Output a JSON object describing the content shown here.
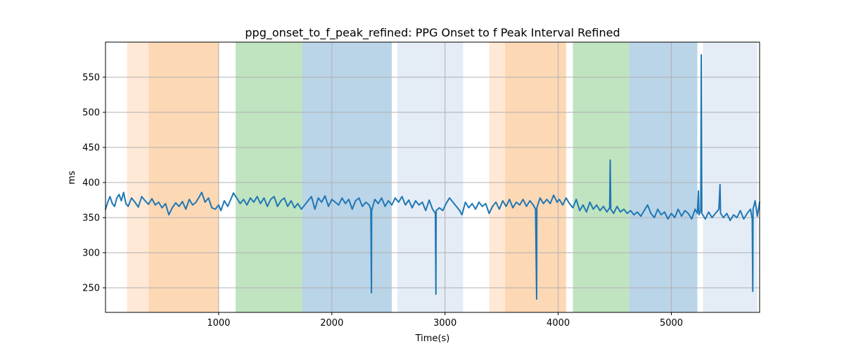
{
  "chart_data": {
    "type": "line",
    "title": "ppg_onset_to_f_peak_refined: PPG Onset to f Peak Interval Refined",
    "xlabel": "Time(s)",
    "ylabel": "ms",
    "xlim": [
      0,
      5780
    ],
    "ylim": [
      215,
      600
    ],
    "x_ticks": [
      1000,
      2000,
      3000,
      4000,
      5000
    ],
    "y_ticks": [
      250,
      300,
      350,
      400,
      450,
      500,
      550
    ],
    "grid": true,
    "line_color": "#1f77b4",
    "bands": [
      {
        "start": 190,
        "end": 380,
        "color": "#ffe9d6"
      },
      {
        "start": 380,
        "end": 1000,
        "color": "#fdd8b5"
      },
      {
        "start": 1150,
        "end": 1740,
        "color": "#c0e3c0"
      },
      {
        "start": 1740,
        "end": 2530,
        "color": "#bad4e8"
      },
      {
        "start": 2580,
        "end": 3160,
        "color": "#e4ecf6"
      },
      {
        "start": 3390,
        "end": 3530,
        "color": "#ffe9d6"
      },
      {
        "start": 3530,
        "end": 4070,
        "color": "#fdd8b5"
      },
      {
        "start": 4130,
        "end": 4630,
        "color": "#c0e3c0"
      },
      {
        "start": 4630,
        "end": 5230,
        "color": "#bad4e8"
      },
      {
        "start": 5280,
        "end": 5760,
        "color": "#e4ecf6"
      }
    ],
    "series": [
      {
        "values": [
          [
            0,
            362
          ],
          [
            20,
            372
          ],
          [
            40,
            380
          ],
          [
            60,
            370
          ],
          [
            80,
            366
          ],
          [
            100,
            378
          ],
          [
            120,
            383
          ],
          [
            140,
            374
          ],
          [
            160,
            386
          ],
          [
            180,
            370
          ],
          [
            200,
            366
          ],
          [
            230,
            378
          ],
          [
            260,
            372
          ],
          [
            290,
            365
          ],
          [
            320,
            380
          ],
          [
            350,
            374
          ],
          [
            380,
            369
          ],
          [
            410,
            377
          ],
          [
            440,
            368
          ],
          [
            470,
            372
          ],
          [
            500,
            364
          ],
          [
            530,
            370
          ],
          [
            560,
            354
          ],
          [
            590,
            364
          ],
          [
            620,
            371
          ],
          [
            650,
            366
          ],
          [
            680,
            373
          ],
          [
            710,
            362
          ],
          [
            740,
            376
          ],
          [
            770,
            368
          ],
          [
            800,
            372
          ],
          [
            830,
            380
          ],
          [
            850,
            386
          ],
          [
            880,
            372
          ],
          [
            910,
            378
          ],
          [
            940,
            364
          ],
          [
            970,
            362
          ],
          [
            1000,
            368
          ],
          [
            1020,
            360
          ],
          [
            1050,
            374
          ],
          [
            1080,
            366
          ],
          [
            1110,
            377
          ],
          [
            1130,
            385
          ],
          [
            1160,
            378
          ],
          [
            1190,
            370
          ],
          [
            1220,
            376
          ],
          [
            1250,
            368
          ],
          [
            1280,
            378
          ],
          [
            1310,
            372
          ],
          [
            1340,
            380
          ],
          [
            1370,
            370
          ],
          [
            1400,
            378
          ],
          [
            1430,
            366
          ],
          [
            1460,
            376
          ],
          [
            1490,
            380
          ],
          [
            1520,
            366
          ],
          [
            1550,
            374
          ],
          [
            1580,
            378
          ],
          [
            1610,
            366
          ],
          [
            1640,
            374
          ],
          [
            1670,
            364
          ],
          [
            1700,
            370
          ],
          [
            1730,
            362
          ],
          [
            1760,
            368
          ],
          [
            1790,
            374
          ],
          [
            1820,
            380
          ],
          [
            1850,
            362
          ],
          [
            1880,
            378
          ],
          [
            1910,
            372
          ],
          [
            1940,
            381
          ],
          [
            1970,
            366
          ],
          [
            2000,
            376
          ],
          [
            2030,
            372
          ],
          [
            2060,
            368
          ],
          [
            2090,
            378
          ],
          [
            2120,
            370
          ],
          [
            2150,
            376
          ],
          [
            2180,
            362
          ],
          [
            2210,
            374
          ],
          [
            2240,
            378
          ],
          [
            2270,
            366
          ],
          [
            2300,
            372
          ],
          [
            2330,
            368
          ],
          [
            2345,
            362
          ],
          [
            2350,
            243
          ],
          [
            2352,
            360
          ],
          [
            2380,
            376
          ],
          [
            2410,
            370
          ],
          [
            2440,
            378
          ],
          [
            2470,
            366
          ],
          [
            2500,
            374
          ],
          [
            2530,
            368
          ],
          [
            2560,
            378
          ],
          [
            2590,
            372
          ],
          [
            2620,
            380
          ],
          [
            2650,
            368
          ],
          [
            2680,
            375
          ],
          [
            2710,
            364
          ],
          [
            2740,
            374
          ],
          [
            2770,
            368
          ],
          [
            2800,
            372
          ],
          [
            2830,
            360
          ],
          [
            2860,
            375
          ],
          [
            2890,
            362
          ],
          [
            2915,
            356
          ],
          [
            2920,
            241
          ],
          [
            2922,
            360
          ],
          [
            2950,
            364
          ],
          [
            2980,
            360
          ],
          [
            3010,
            370
          ],
          [
            3040,
            378
          ],
          [
            3070,
            372
          ],
          [
            3100,
            366
          ],
          [
            3130,
            360
          ],
          [
            3150,
            354
          ],
          [
            3180,
            372
          ],
          [
            3210,
            364
          ],
          [
            3240,
            370
          ],
          [
            3270,
            362
          ],
          [
            3300,
            372
          ],
          [
            3330,
            366
          ],
          [
            3360,
            370
          ],
          [
            3390,
            356
          ],
          [
            3420,
            366
          ],
          [
            3450,
            372
          ],
          [
            3480,
            362
          ],
          [
            3510,
            374
          ],
          [
            3540,
            366
          ],
          [
            3570,
            376
          ],
          [
            3600,
            364
          ],
          [
            3630,
            372
          ],
          [
            3660,
            368
          ],
          [
            3690,
            376
          ],
          [
            3720,
            366
          ],
          [
            3750,
            374
          ],
          [
            3780,
            368
          ],
          [
            3800,
            362
          ],
          [
            3810,
            234
          ],
          [
            3812,
            364
          ],
          [
            3840,
            378
          ],
          [
            3870,
            370
          ],
          [
            3900,
            376
          ],
          [
            3930,
            370
          ],
          [
            3960,
            382
          ],
          [
            3990,
            372
          ],
          [
            4010,
            376
          ],
          [
            4040,
            368
          ],
          [
            4070,
            378
          ],
          [
            4100,
            370
          ],
          [
            4130,
            364
          ],
          [
            4160,
            376
          ],
          [
            4190,
            360
          ],
          [
            4220,
            368
          ],
          [
            4250,
            358
          ],
          [
            4280,
            372
          ],
          [
            4310,
            362
          ],
          [
            4340,
            368
          ],
          [
            4370,
            360
          ],
          [
            4400,
            366
          ],
          [
            4430,
            358
          ],
          [
            4455,
            364
          ],
          [
            4460,
            432
          ],
          [
            4465,
            362
          ],
          [
            4490,
            356
          ],
          [
            4520,
            366
          ],
          [
            4550,
            358
          ],
          [
            4580,
            362
          ],
          [
            4610,
            356
          ],
          [
            4640,
            360
          ],
          [
            4670,
            354
          ],
          [
            4700,
            358
          ],
          [
            4730,
            352
          ],
          [
            4760,
            360
          ],
          [
            4790,
            368
          ],
          [
            4820,
            356
          ],
          [
            4850,
            350
          ],
          [
            4880,
            362
          ],
          [
            4910,
            354
          ],
          [
            4940,
            358
          ],
          [
            4970,
            348
          ],
          [
            5000,
            356
          ],
          [
            5030,
            350
          ],
          [
            5060,
            362
          ],
          [
            5090,
            352
          ],
          [
            5120,
            360
          ],
          [
            5150,
            356
          ],
          [
            5180,
            348
          ],
          [
            5210,
            362
          ],
          [
            5230,
            356
          ],
          [
            5240,
            388
          ],
          [
            5245,
            354
          ],
          [
            5260,
            360
          ],
          [
            5265,
            582
          ],
          [
            5270,
            356
          ],
          [
            5300,
            348
          ],
          [
            5330,
            358
          ],
          [
            5360,
            350
          ],
          [
            5390,
            356
          ],
          [
            5420,
            362
          ],
          [
            5430,
            397
          ],
          [
            5435,
            356
          ],
          [
            5460,
            350
          ],
          [
            5490,
            356
          ],
          [
            5520,
            346
          ],
          [
            5550,
            354
          ],
          [
            5580,
            350
          ],
          [
            5610,
            360
          ],
          [
            5640,
            348
          ],
          [
            5670,
            356
          ],
          [
            5700,
            362
          ],
          [
            5715,
            348
          ],
          [
            5720,
            245
          ],
          [
            5722,
            362
          ],
          [
            5740,
            374
          ],
          [
            5760,
            352
          ],
          [
            5780,
            372
          ]
        ]
      }
    ]
  }
}
